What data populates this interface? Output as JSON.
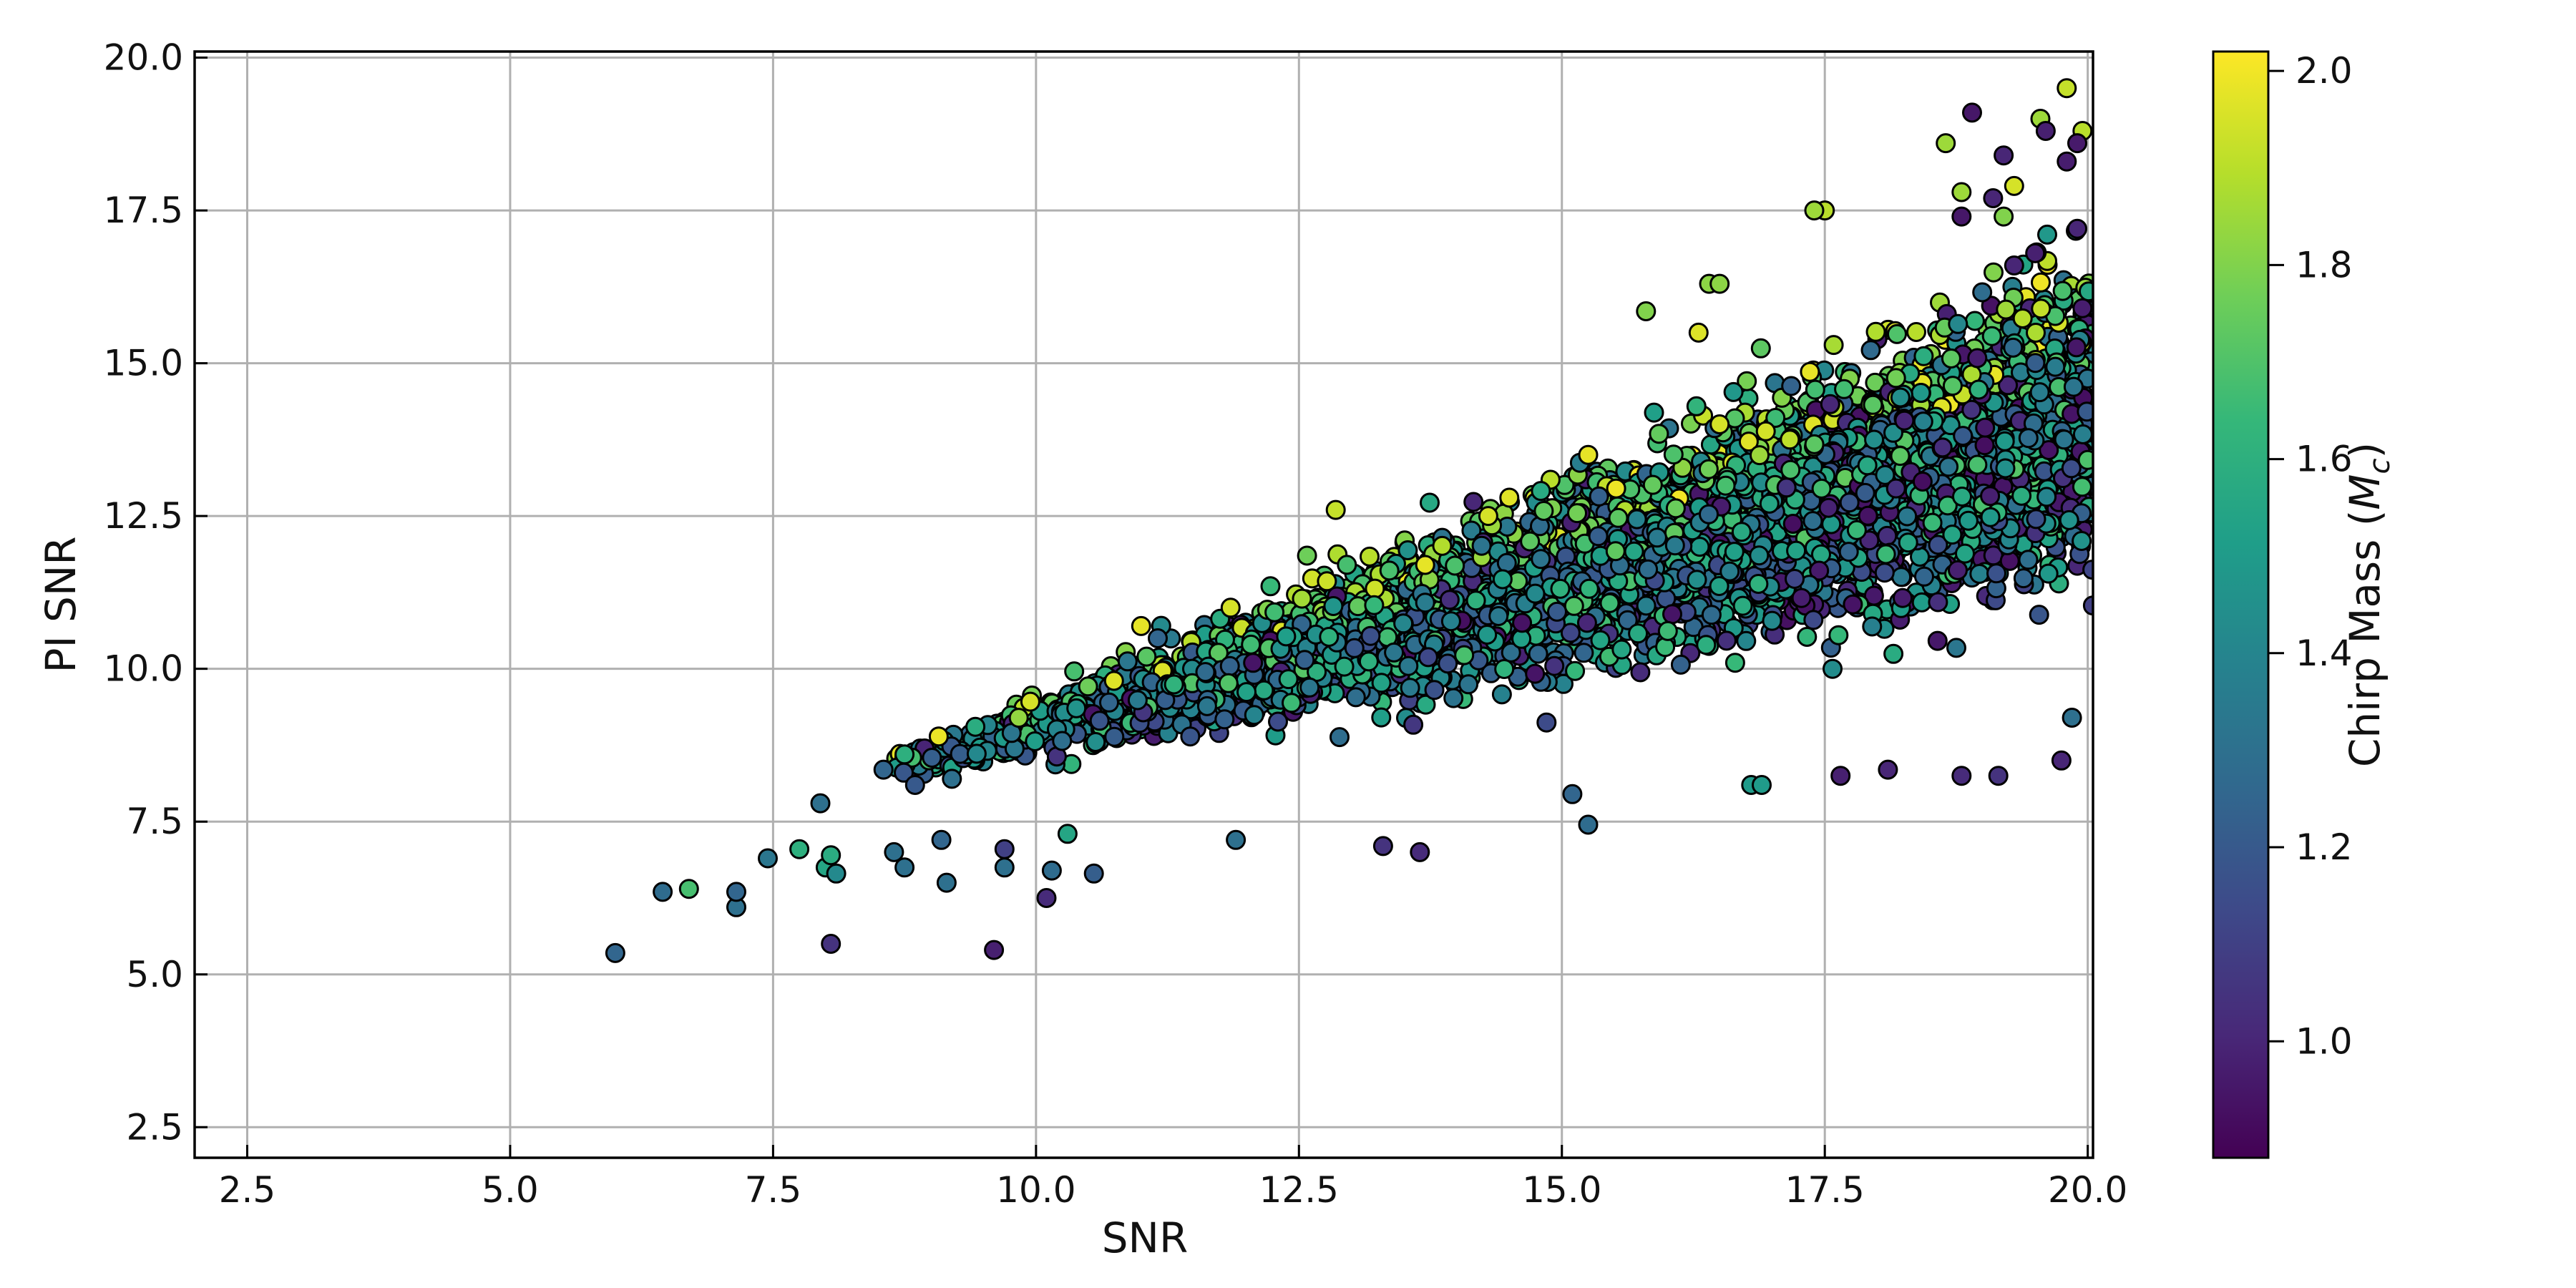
{
  "chart_data": {
    "type": "scatter",
    "xlabel": "SNR",
    "ylabel": "PI SNR",
    "xlim": [
      2.0,
      20.05
    ],
    "ylim": [
      2.0,
      20.1
    ],
    "x_ticks": [
      "2.5",
      "5.0",
      "7.5",
      "10.0",
      "12.5",
      "15.0",
      "17.5",
      "20.0"
    ],
    "y_ticks": [
      "2.5",
      "5.0",
      "7.5",
      "10.0",
      "12.5",
      "15.0",
      "17.5",
      "20.0"
    ],
    "grid": true,
    "colorbar": {
      "label_main": "Chirp Mass (",
      "label_var": "M",
      "label_sub": "c",
      "label_end": ")",
      "range": [
        0.88,
        2.02
      ],
      "ticks": [
        "1.0",
        "1.2",
        "1.4",
        "1.6",
        "1.8",
        "2.0"
      ],
      "colormap": "viridis"
    },
    "colors": {
      "viridis": [
        "#440154",
        "#482878",
        "#3e4989",
        "#31688e",
        "#26828e",
        "#1f9e89",
        "#35b779",
        "#6ece58",
        "#b5de2b",
        "#fde725"
      ]
    },
    "sample_points": [
      [
        6.0,
        5.35,
        1.25
      ],
      [
        6.45,
        6.35,
        1.28
      ],
      [
        6.7,
        6.4,
        1.68
      ],
      [
        7.15,
        6.1,
        1.3
      ],
      [
        7.15,
        6.35,
        1.25
      ],
      [
        7.45,
        6.9,
        1.33
      ],
      [
        7.75,
        7.05,
        1.6
      ],
      [
        7.95,
        7.8,
        1.3
      ],
      [
        8.0,
        6.75,
        1.55
      ],
      [
        8.05,
        6.95,
        1.58
      ],
      [
        8.1,
        6.65,
        1.42
      ],
      [
        8.05,
        5.5,
        1.05
      ],
      [
        8.55,
        8.35,
        1.25
      ],
      [
        8.65,
        7.0,
        1.3
      ],
      [
        8.75,
        8.6,
        1.6
      ],
      [
        8.85,
        8.1,
        1.2
      ],
      [
        8.75,
        6.75,
        1.3
      ],
      [
        9.15,
        6.5,
        1.3
      ],
      [
        9.1,
        7.2,
        1.25
      ],
      [
        9.2,
        8.2,
        1.3
      ],
      [
        9.6,
        5.4,
        0.98
      ],
      [
        9.7,
        7.05,
        1.1
      ],
      [
        9.7,
        6.75,
        1.3
      ],
      [
        10.1,
        6.25,
        1.02
      ],
      [
        10.15,
        6.7,
        1.28
      ],
      [
        10.55,
        6.65,
        1.22
      ],
      [
        10.3,
        7.3,
        1.55
      ],
      [
        11.9,
        7.2,
        1.3
      ],
      [
        13.3,
        7.1,
        1.05
      ],
      [
        13.65,
        7.0,
        1.02
      ],
      [
        15.25,
        7.45,
        1.28
      ],
      [
        15.1,
        7.95,
        1.25
      ],
      [
        16.8,
        8.1,
        1.5
      ],
      [
        16.9,
        8.1,
        1.5
      ],
      [
        17.65,
        8.25,
        0.98
      ],
      [
        18.1,
        8.35,
        1.0
      ],
      [
        18.8,
        8.25,
        1.02
      ],
      [
        19.15,
        8.25,
        1.05
      ],
      [
        19.75,
        8.5,
        1.0
      ],
      [
        19.85,
        9.2,
        1.3
      ],
      [
        11.0,
        10.7,
        1.98
      ],
      [
        11.85,
        11.0,
        1.95
      ],
      [
        12.85,
        12.6,
        1.92
      ],
      [
        13.7,
        11.7,
        1.98
      ],
      [
        14.3,
        12.5,
        1.95
      ],
      [
        14.5,
        12.8,
        1.97
      ],
      [
        15.25,
        13.5,
        1.98
      ],
      [
        16.5,
        14.0,
        1.95
      ],
      [
        16.3,
        15.5,
        1.96
      ],
      [
        17.5,
        17.5,
        1.9
      ],
      [
        18.8,
        17.8,
        1.85
      ],
      [
        19.3,
        17.9,
        1.95
      ],
      [
        19.2,
        17.4,
        1.8
      ],
      [
        19.55,
        19.0,
        1.85
      ],
      [
        19.8,
        19.5,
        1.92
      ],
      [
        19.95,
        18.8,
        1.9
      ],
      [
        18.65,
        18.6,
        1.85
      ],
      [
        18.9,
        19.1,
        0.95
      ],
      [
        19.6,
        18.8,
        0.98
      ],
      [
        19.9,
        18.6,
        0.96
      ],
      [
        19.8,
        18.3,
        0.97
      ],
      [
        19.2,
        18.4,
        1.0
      ],
      [
        19.1,
        17.7,
        1.0
      ],
      [
        18.8,
        17.4,
        0.95
      ],
      [
        19.5,
        16.8,
        0.98
      ],
      [
        19.9,
        17.2,
        1.0
      ],
      [
        19.95,
        15.9,
        0.97
      ],
      [
        19.3,
        16.6,
        1.0
      ],
      [
        16.4,
        16.3,
        1.82
      ],
      [
        16.5,
        16.3,
        1.82
      ],
      [
        15.8,
        15.85,
        1.8
      ],
      [
        17.4,
        17.5,
        1.85
      ]
    ]
  }
}
